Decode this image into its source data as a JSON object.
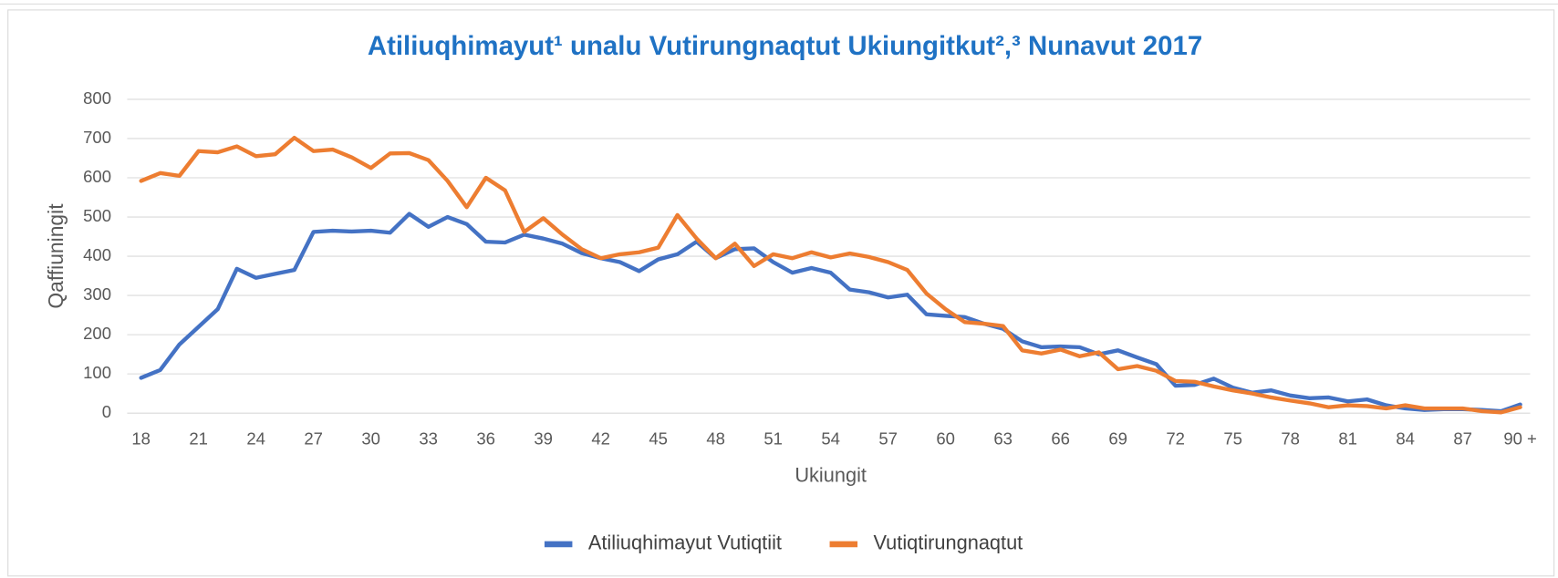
{
  "chart_data": {
    "type": "line",
    "title": "Atiliuqhimayut¹ unalu Vutirungnaqtut Ukiungitkut²,³ Nunavut 2017",
    "x_label": "Ukiungit",
    "y_label": "Qaffiuningit",
    "categories": [
      "18",
      null,
      null,
      "21",
      null,
      null,
      "24",
      null,
      null,
      "27",
      null,
      null,
      "30",
      null,
      null,
      "33",
      null,
      null,
      "36",
      null,
      null,
      "39",
      null,
      null,
      "42",
      null,
      null,
      "45",
      null,
      null,
      "48",
      null,
      null,
      "51",
      null,
      null,
      "54",
      null,
      null,
      "57",
      null,
      null,
      "60",
      null,
      null,
      "63",
      null,
      null,
      "66",
      null,
      null,
      "69",
      null,
      null,
      "72",
      null,
      null,
      "75",
      null,
      null,
      "78",
      null,
      null,
      "81",
      null,
      null,
      "84",
      null,
      null,
      "87",
      null,
      null,
      "90 +"
    ],
    "series": [
      {
        "name": "Atiliuqhimayut Vutiqtiit",
        "color": "#4472c4",
        "values": [
          90,
          110,
          175,
          220,
          265,
          368,
          345,
          355,
          365,
          462,
          465,
          463,
          465,
          460,
          508,
          475,
          500,
          482,
          437,
          435,
          455,
          445,
          432,
          408,
          395,
          385,
          362,
          392,
          405,
          437,
          395,
          418,
          420,
          385,
          358,
          370,
          358,
          315,
          308,
          295,
          302,
          252,
          248,
          245,
          228,
          215,
          183,
          168,
          170,
          168,
          150,
          160,
          142,
          125,
          70,
          72,
          88,
          65,
          52,
          58,
          45,
          38,
          40,
          30,
          35,
          20,
          12,
          8,
          10,
          10,
          8,
          5,
          22
        ]
      },
      {
        "name": "Vutiqtirungnaqtut",
        "color": "#ed7d31",
        "values": [
          592,
          612,
          605,
          668,
          665,
          680,
          655,
          660,
          702,
          668,
          672,
          652,
          625,
          662,
          663,
          645,
          592,
          525,
          600,
          568,
          462,
          497,
          455,
          418,
          395,
          405,
          410,
          422,
          505,
          445,
          395,
          432,
          375,
          405,
          395,
          410,
          397,
          407,
          398,
          385,
          365,
          305,
          265,
          232,
          228,
          222,
          160,
          152,
          162,
          145,
          155,
          112,
          120,
          108,
          82,
          80,
          68,
          58,
          50,
          40,
          32,
          25,
          15,
          20,
          18,
          12,
          20,
          12,
          12,
          12,
          5,
          2,
          15
        ]
      }
    ],
    "ylim": [
      0,
      800
    ],
    "yticks": [
      0,
      100,
      200,
      300,
      400,
      500,
      600,
      700,
      800
    ],
    "grid": true,
    "legend": "bottom"
  }
}
